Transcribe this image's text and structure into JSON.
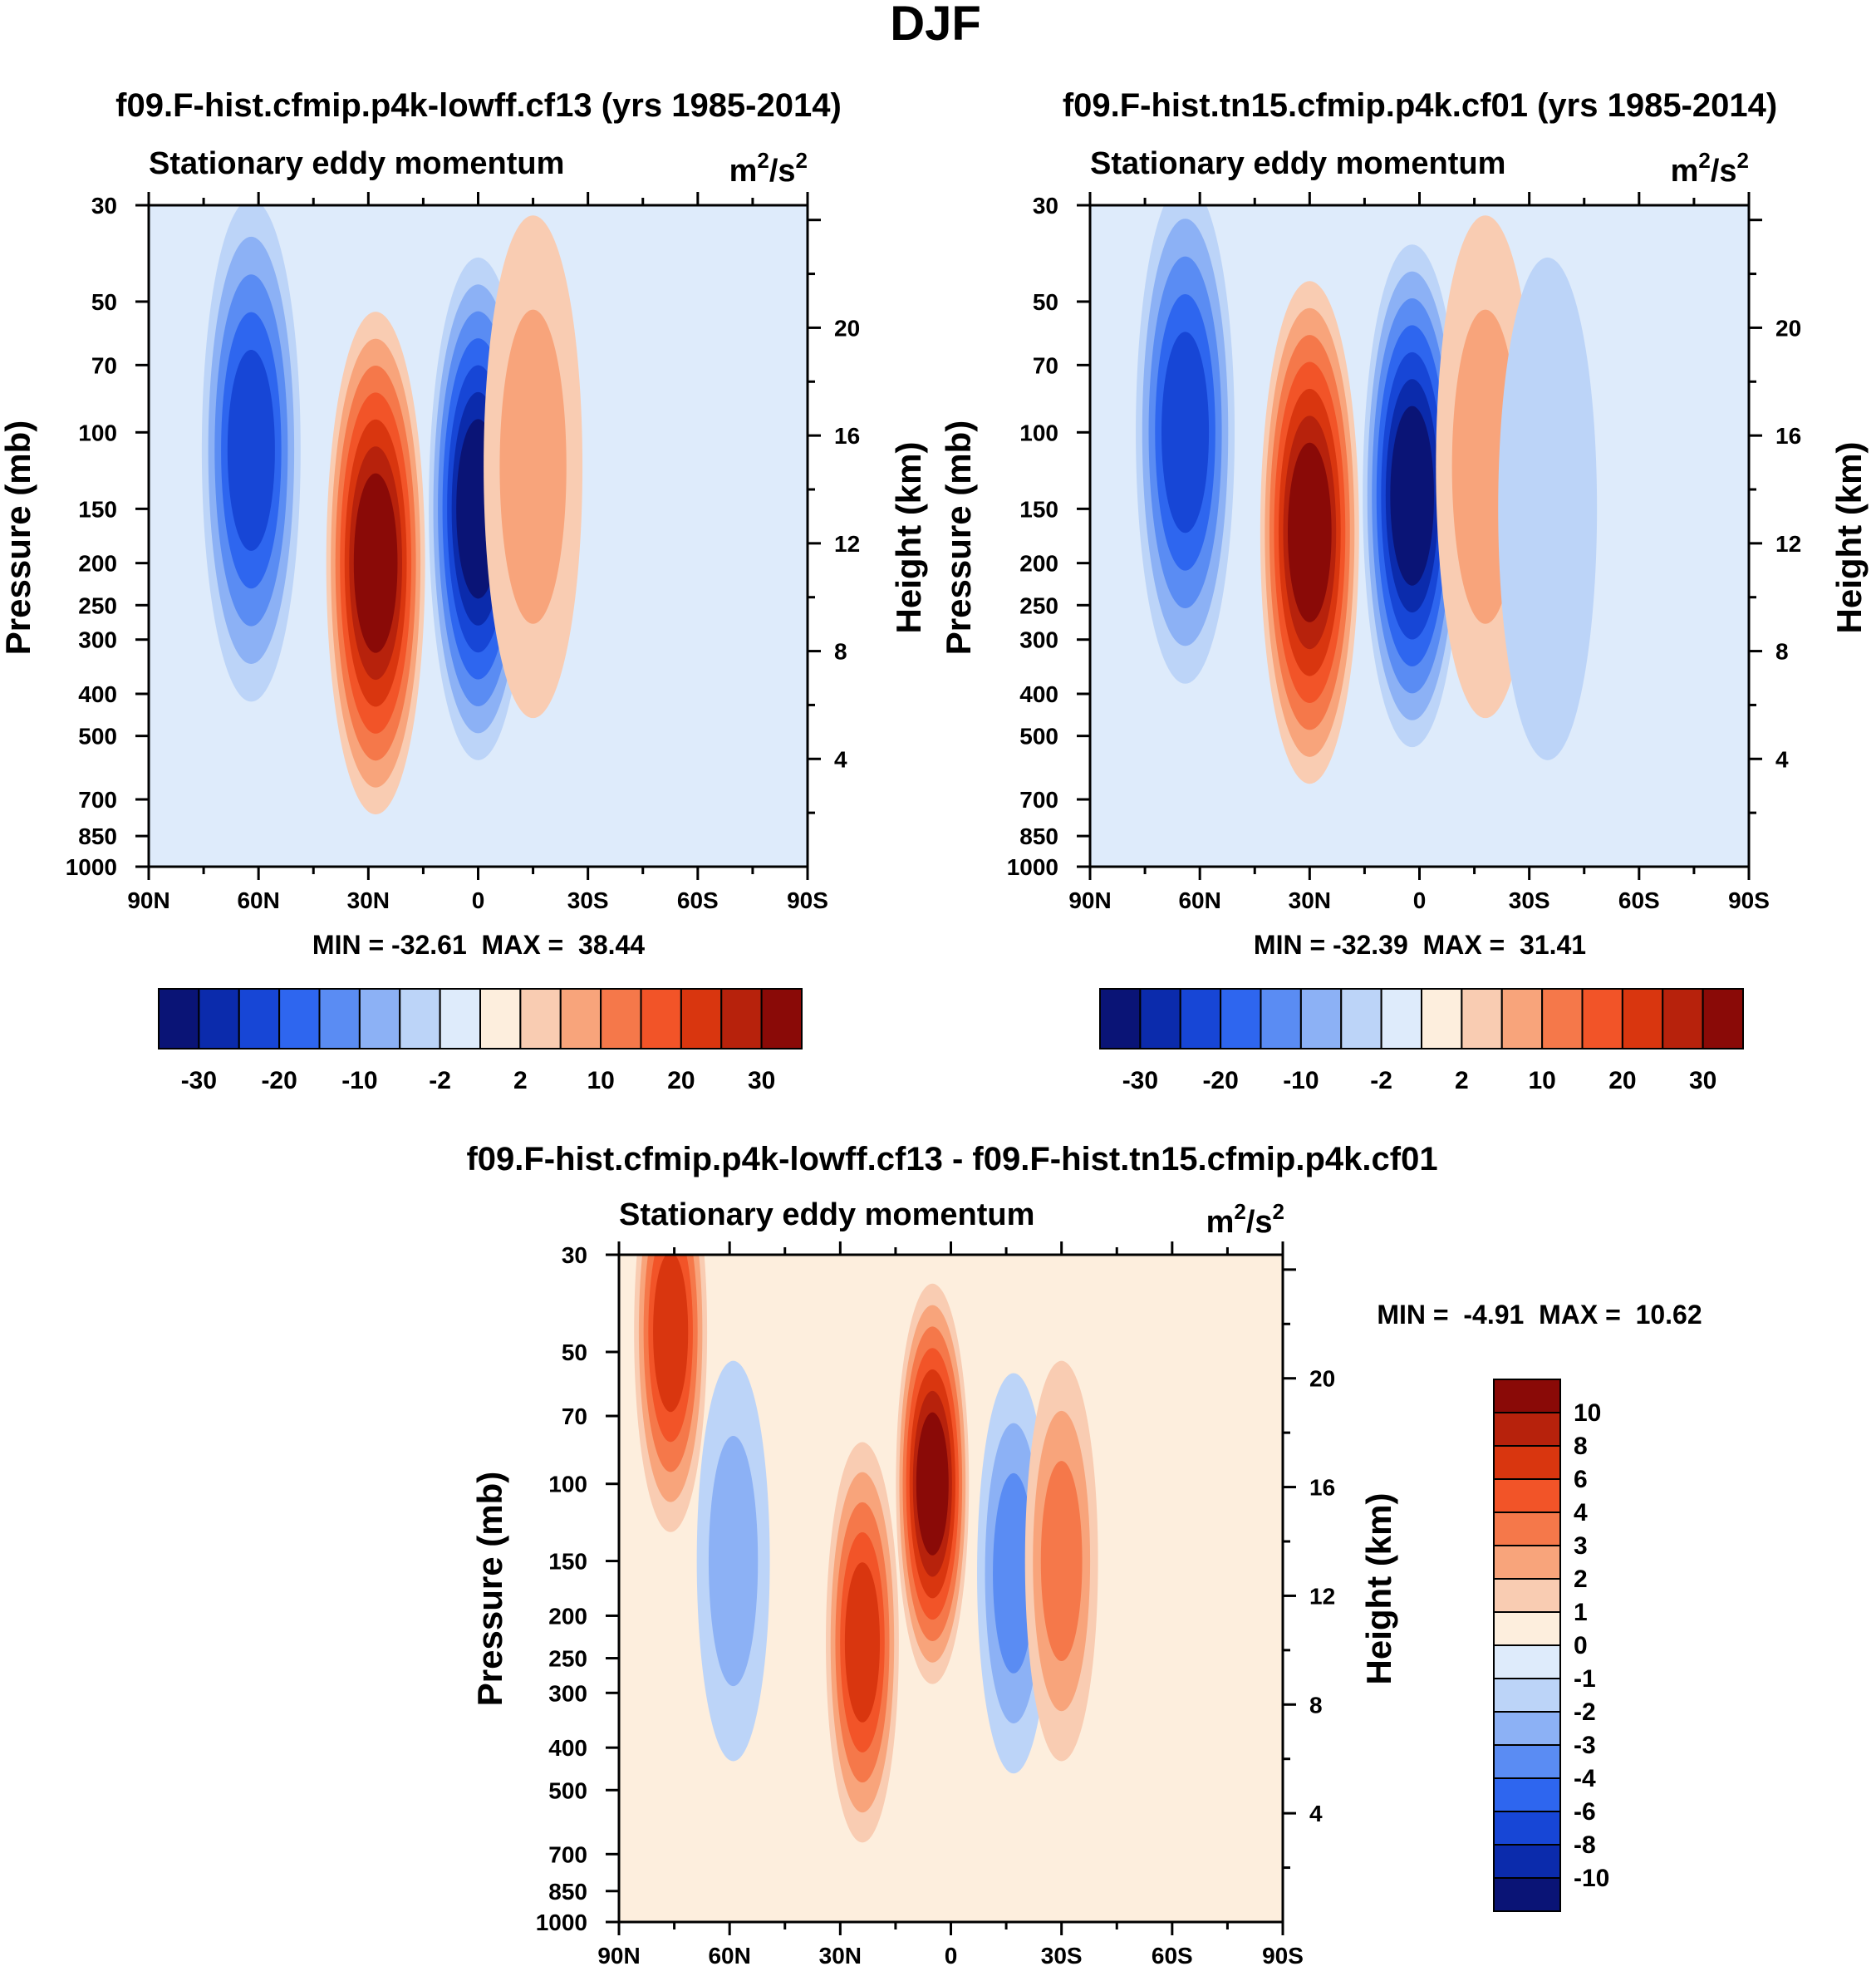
{
  "season": "DJF",
  "colors": {
    "levels_full": [
      "#0a1476",
      "#0b2bac",
      "#1746d6",
      "#2e66ef",
      "#5a8cf3",
      "#8cb1f5",
      "#bcd4f8",
      "#deebfb",
      "#fdeedd",
      "#f9ccb2",
      "#f8a47b",
      "#f5784a",
      "#f25428",
      "#d9360f",
      "#b7220c",
      "#8a0a07"
    ],
    "levels_diff": [
      "#0a1476",
      "#0b2bac",
      "#1746d6",
      "#2e66ef",
      "#5a8cf3",
      "#8cb1f5",
      "#bcd4f8",
      "#deebfb",
      "#fdeedd",
      "#f9ccb2",
      "#f8a47b",
      "#f5784a",
      "#f25428",
      "#d9360f",
      "#b7220c",
      "#8a0a07"
    ]
  },
  "panels": [
    {
      "id": "p1",
      "title": "f09.F-hist.cfmip.p4k-lowff.cf13 (yrs 1985-2014)",
      "variable": "Stationary eddy momentum",
      "units": "m²/s²",
      "units_base": "m",
      "units_mid": "/s",
      "units_sup": "2",
      "ylabel": "Pressure (mb)",
      "y2label": "Height (km)",
      "stats": "MIN = -32.61  MAX =  38.44"
    },
    {
      "id": "p2",
      "title": "f09.F-hist.tn15.cfmip.p4k.cf01 (yrs 1985-2014)",
      "variable": "Stationary eddy momentum",
      "units": "m²/s²",
      "units_base": "m",
      "units_mid": "/s",
      "units_sup": "2",
      "ylabel": "Pressure (mb)",
      "y2label": "Height (km)",
      "stats": "MIN = -32.39  MAX =  31.41"
    },
    {
      "id": "p3",
      "title": "f09.F-hist.cfmip.p4k-lowff.cf13 - f09.F-hist.tn15.cfmip.p4k.cf01",
      "variable": "Stationary eddy momentum",
      "units": "m²/s²",
      "units_base": "m",
      "units_mid": "/s",
      "units_sup": "2",
      "ylabel": "Pressure (mb)",
      "y2label": "Height (km)",
      "stats": "MIN =  -4.91  MAX =  10.62"
    }
  ],
  "colorbar_full_labels": [
    "-30",
    "-20",
    "-10",
    "-2",
    "2",
    "10",
    "20",
    "30"
  ],
  "colorbar_diff_labels": [
    "10",
    "8",
    "6",
    "4",
    "3",
    "2",
    "1",
    "0",
    "-1",
    "-2",
    "-3",
    "-4",
    "-6",
    "-8",
    "-10"
  ],
  "chart_data": [
    {
      "type": "heatmap",
      "title": "f09.F-hist.cfmip.p4k-lowff.cf13 (yrs 1985-2014)",
      "subtitle": "Stationary eddy momentum",
      "ylabel": "Pressure (mb)",
      "y2label": "Height (km)",
      "x_ticks": [
        "90N",
        "60N",
        "30N",
        "0",
        "30S",
        "60S",
        "90S"
      ],
      "x_range": [
        90,
        -90
      ],
      "y_ticks_pressure": [
        30,
        50,
        70,
        100,
        150,
        200,
        250,
        300,
        400,
        500,
        700,
        850,
        1000
      ],
      "y_range_pressure": [
        30,
        1000
      ],
      "y_scale": "log",
      "y2_ticks_height": [
        4,
        8,
        12,
        16,
        20
      ],
      "units": "m2/s2",
      "min": -32.61,
      "max": 38.44,
      "features": [
        {
          "lat": 62,
          "p": 110,
          "value": -22
        },
        {
          "lat": 28,
          "p": 200,
          "value": 38
        },
        {
          "lat": 0,
          "p": 150,
          "value": -32
        },
        {
          "lat": -15,
          "p": 120,
          "value": 5
        }
      ]
    },
    {
      "type": "heatmap",
      "title": "f09.F-hist.tn15.cfmip.p4k.cf01 (yrs 1985-2014)",
      "subtitle": "Stationary eddy momentum",
      "ylabel": "Pressure (mb)",
      "y2label": "Height (km)",
      "x_ticks": [
        "90N",
        "60N",
        "30N",
        "0",
        "30S",
        "60S",
        "90S"
      ],
      "x_range": [
        90,
        -90
      ],
      "y_ticks_pressure": [
        30,
        50,
        70,
        100,
        150,
        200,
        250,
        300,
        400,
        500,
        700,
        850,
        1000
      ],
      "y_range_pressure": [
        30,
        1000
      ],
      "y_scale": "log",
      "y2_ticks_height": [
        4,
        8,
        12,
        16,
        20
      ],
      "units": "m2/s2",
      "min": -32.39,
      "max": 31.41,
      "features": [
        {
          "lat": 64,
          "p": 100,
          "value": -22
        },
        {
          "lat": 30,
          "p": 170,
          "value": 31
        },
        {
          "lat": 2,
          "p": 140,
          "value": -32
        },
        {
          "lat": -18,
          "p": 120,
          "value": 8
        },
        {
          "lat": -35,
          "p": 150,
          "value": -4
        }
      ]
    },
    {
      "type": "heatmap",
      "title": "f09.F-hist.cfmip.p4k-lowff.cf13 - f09.F-hist.tn15.cfmip.p4k.cf01",
      "subtitle": "Stationary eddy momentum",
      "ylabel": "Pressure (mb)",
      "y2label": "Height (km)",
      "x_ticks": [
        "90N",
        "60N",
        "30N",
        "0",
        "30S",
        "60S",
        "90S"
      ],
      "x_range": [
        90,
        -90
      ],
      "y_ticks_pressure": [
        30,
        50,
        70,
        100,
        150,
        200,
        250,
        300,
        400,
        500,
        700,
        850,
        1000
      ],
      "y_range_pressure": [
        30,
        1000
      ],
      "y_scale": "log",
      "y2_ticks_height": [
        4,
        8,
        12,
        16,
        20
      ],
      "units": "m2/s2",
      "min": -4.91,
      "max": 10.62,
      "features": [
        {
          "lat": 76,
          "p": 45,
          "value": 6
        },
        {
          "lat": 59,
          "p": 150,
          "value": -2.5
        },
        {
          "lat": 24,
          "p": 230,
          "value": 7
        },
        {
          "lat": 5,
          "p": 100,
          "value": 10.6
        },
        {
          "lat": -17,
          "p": 160,
          "value": -3
        },
        {
          "lat": -30,
          "p": 150,
          "value": 3
        },
        {
          "lat": 30,
          "p": 80,
          "value": 0.6
        }
      ]
    }
  ]
}
